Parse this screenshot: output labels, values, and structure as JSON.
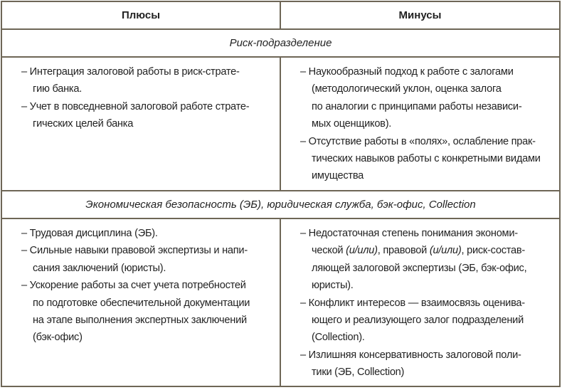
{
  "columns": [
    "Плюсы",
    "Минусы"
  ],
  "sections": [
    {
      "title": "Риск-подразделение",
      "plus": [
        [
          "– Интеграция залоговой работы в риск-страте-",
          "гию банка."
        ],
        [
          "– Учет в повседневной залоговой работе страте-",
          "гических целей банка"
        ]
      ],
      "minus": [
        [
          "– Наукообразный подход к работе с залогами",
          "(методологический уклон, оценка залога",
          "по аналогии с принципами работы независи-",
          "мых оценщиков)."
        ],
        [
          "– Отсутствие работы в «полях», ослабление прак-",
          "тических навыков работы с конкретными видами",
          "имущества"
        ]
      ]
    },
    {
      "title": "Экономическая безопасность (ЭБ), юридическая служба, бэк-офис, Collection",
      "plus": [
        [
          "– Трудовая дисциплина (ЭБ)."
        ],
        [
          "– Сильные навыки правовой экспертизы и напи-",
          "сания заключений (юристы)."
        ],
        [
          "– Ускорение работы за счет учета потребностей",
          "по подготовке обеспечительной документации",
          "на этапе выполнения экспертных заключений",
          "(бэк-офис)"
        ]
      ],
      "minus": [
        [
          "– Недостаточная степень понимания экономи-",
          [
            {
              "t": "ческой "
            },
            {
              "t": "(и/или)",
              "i": true
            },
            {
              "t": ", правовой "
            },
            {
              "t": "(и/или)",
              "i": true
            },
            {
              "t": ", риск-состав-"
            }
          ],
          "ляющей залоговой экспертизы (ЭБ, бэк-офис,",
          "юристы)."
        ],
        [
          "– Конфликт интересов — взаимосвязь оценива-",
          "ющего и реализующего залог подразделений",
          "(Collection)."
        ],
        [
          "– Излишняя консервативность залоговой поли-",
          "тики (ЭБ, Collection)"
        ]
      ]
    }
  ]
}
